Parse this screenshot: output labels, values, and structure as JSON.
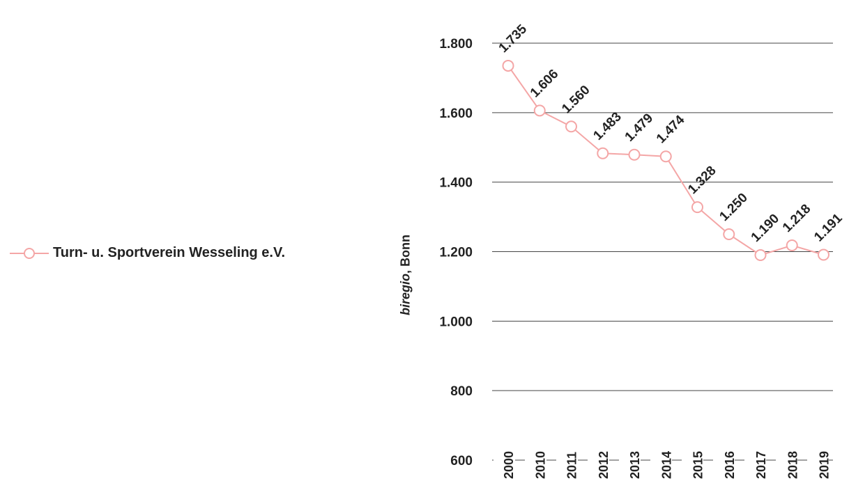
{
  "chart_data": {
    "type": "line",
    "categories": [
      "2000",
      "2010",
      "2011",
      "2012",
      "2013",
      "2014",
      "2015",
      "2016",
      "2017",
      "2018",
      "2019"
    ],
    "series": [
      {
        "name": "Turn- u. Sportverein Wesseling e.V.",
        "values": [
          1735,
          1606,
          1560,
          1483,
          1479,
          1474,
          1328,
          1250,
          1190,
          1218,
          1191
        ],
        "color": "#f4a6a6"
      }
    ],
    "data_labels": [
      "1.735",
      "1.606",
      "1.560",
      "1.483",
      "1.479",
      "1.474",
      "1.328",
      "1.250",
      "1.190",
      "1.218",
      "1.191"
    ],
    "ylabel_source": "biregio",
    "ylabel_place": ", Bonn",
    "ylim": [
      600,
      1800
    ],
    "yticks": [
      600,
      800,
      1000,
      1200,
      1400,
      1600,
      1800
    ],
    "ytick_labels": [
      "600",
      "800",
      "1.000",
      "1.200",
      "1.400",
      "1.600",
      "1.800"
    ],
    "grid": true,
    "legend_position": "left"
  }
}
